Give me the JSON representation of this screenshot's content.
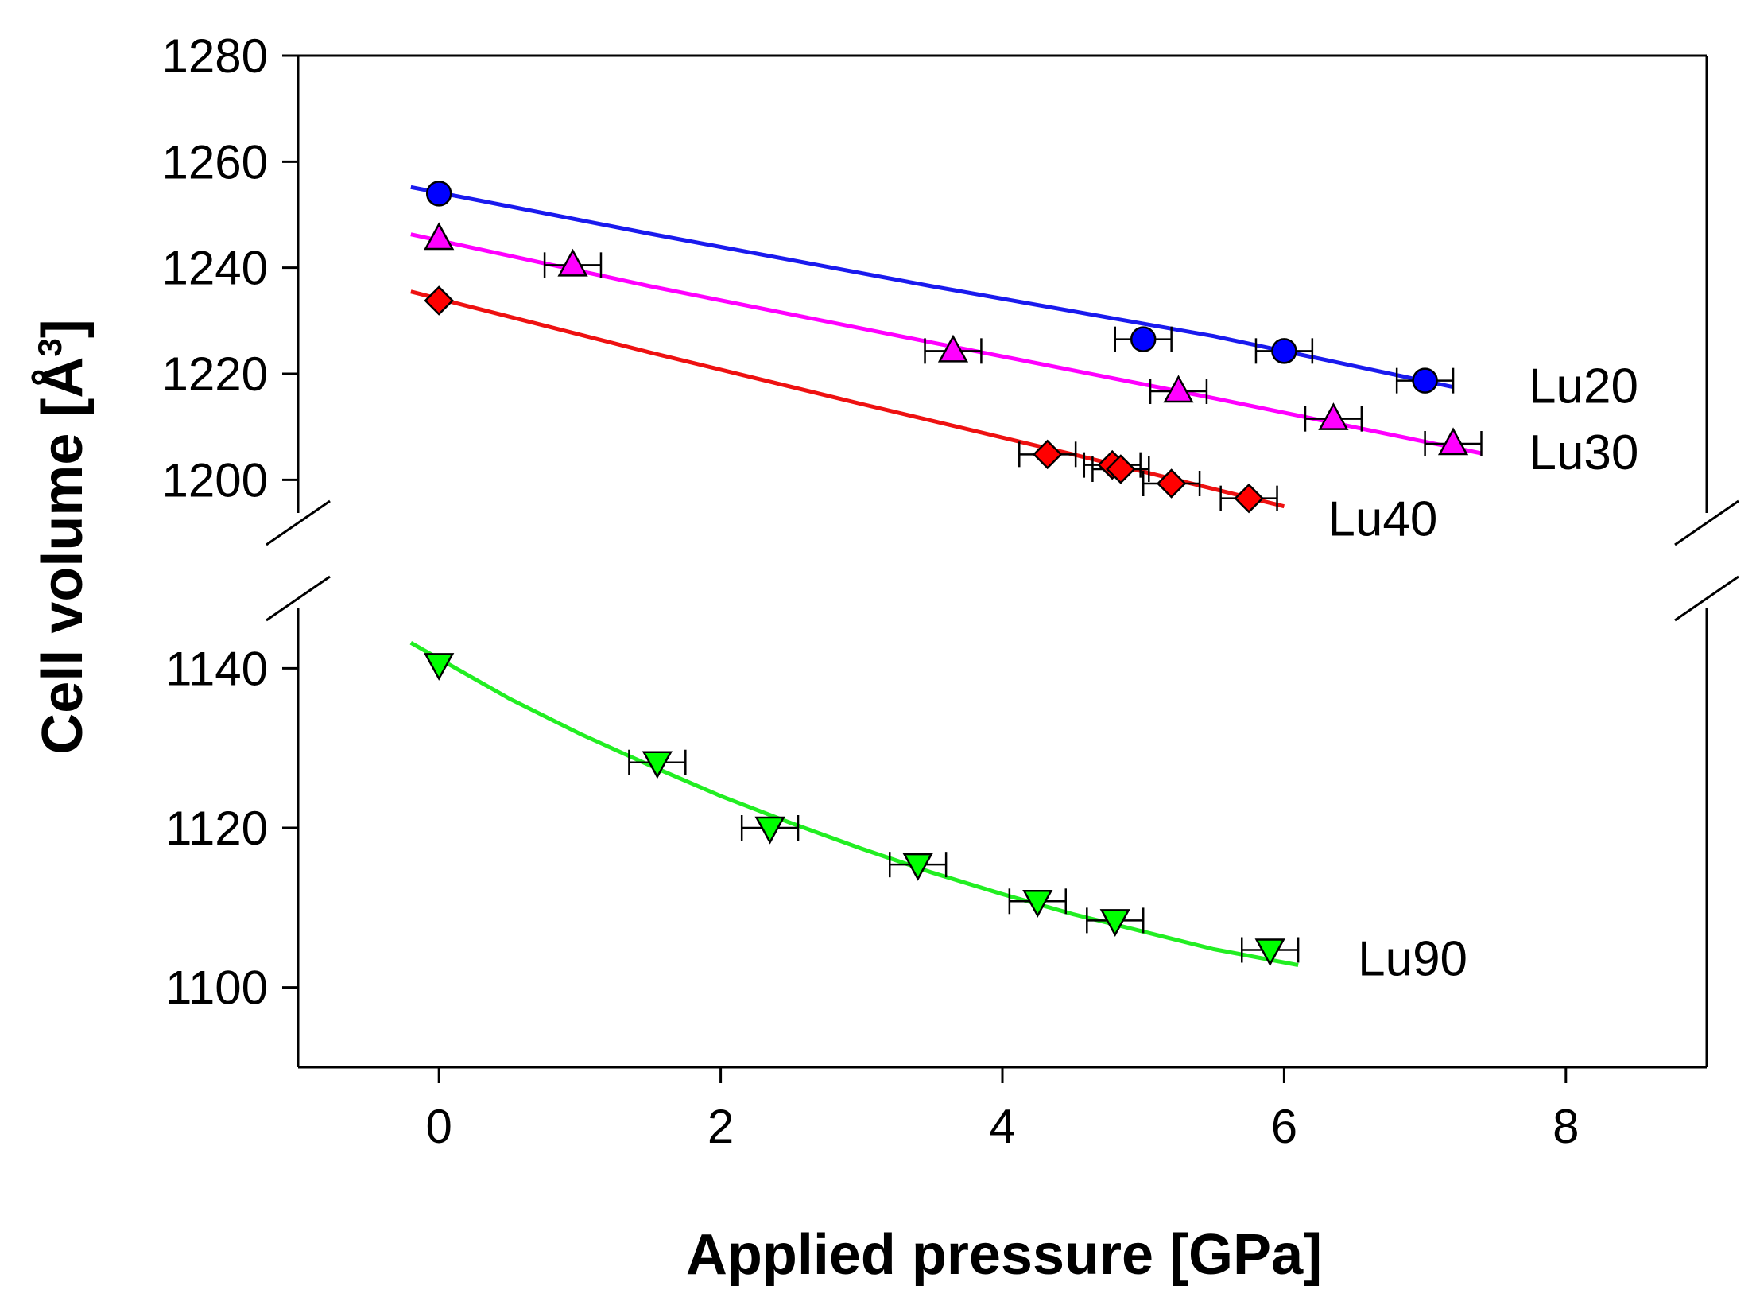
{
  "chart_data": {
    "type": "scatter",
    "xlabel": "Applied pressure [GPa]",
    "ylabel": {
      "main": "Cell volume [Å",
      "superscript": "3",
      "close": "]"
    },
    "xlim": [
      -1,
      9
    ],
    "ylim_upper": [
      1190,
      1280
    ],
    "ylim_lower": [
      1090,
      1150
    ],
    "broken_y_axis": true,
    "x_ticks": [
      "0",
      "2",
      "4",
      "6",
      "8"
    ],
    "x_tick_values": [
      0,
      2,
      4,
      6,
      8
    ],
    "y_ticks_upper": [
      "1200",
      "1220",
      "1240",
      "1260",
      "1280"
    ],
    "y_tick_values_upper": [
      1200,
      1220,
      1240,
      1260,
      1280
    ],
    "y_ticks_lower": [
      "1100",
      "1120",
      "1140"
    ],
    "y_tick_values_lower": [
      1100,
      1120,
      1140
    ],
    "grid": false,
    "series": [
      {
        "name": "Lu20",
        "segment": "upper",
        "color": "#0000ff",
        "line_color": "#1a1aee",
        "marker": "circle",
        "points": [
          {
            "x": 0,
            "y": 1254,
            "xerr": 0
          },
          {
            "x": 5.0,
            "y": 1226.5,
            "xerr": 0.2
          },
          {
            "x": 6.0,
            "y": 1224.3,
            "xerr": 0.2
          },
          {
            "x": 7.0,
            "y": 1218.7,
            "xerr": 0.2
          }
        ],
        "fit": [
          [
            -0.2,
            1255.2
          ],
          [
            1.5,
            1246.4
          ],
          [
            3.5,
            1236.5
          ],
          [
            5.5,
            1227.1
          ],
          [
            7.2,
            1217.5
          ]
        ]
      },
      {
        "name": "Lu30",
        "segment": "upper",
        "color": "#ff00ff",
        "line_color": "#ff00ff",
        "marker": "triangle-up",
        "points": [
          {
            "x": 0,
            "y": 1245.5,
            "xerr": 0
          },
          {
            "x": 0.95,
            "y": 1240.5,
            "xerr": 0.2
          },
          {
            "x": 3.65,
            "y": 1224.3,
            "xerr": 0.2
          },
          {
            "x": 5.25,
            "y": 1216.7,
            "xerr": 0.2
          },
          {
            "x": 6.35,
            "y": 1211.5,
            "xerr": 0.2
          },
          {
            "x": 7.2,
            "y": 1206.8,
            "xerr": 0.2
          }
        ],
        "fit": [
          [
            -0.2,
            1246.3
          ],
          [
            1.5,
            1236.5
          ],
          [
            3.5,
            1225.9
          ],
          [
            5.5,
            1215.4
          ],
          [
            7.4,
            1205.0
          ]
        ]
      },
      {
        "name": "Lu40",
        "segment": "upper",
        "color": "#ff0000",
        "line_color": "#ee1111",
        "marker": "diamond",
        "points": [
          {
            "x": 0,
            "y": 1233.8,
            "xerr": 0
          },
          {
            "x": 4.32,
            "y": 1204.8,
            "xerr": 0.2
          },
          {
            "x": 4.78,
            "y": 1202.8,
            "xerr": 0.2
          },
          {
            "x": 4.84,
            "y": 1202.0,
            "xerr": 0.2
          },
          {
            "x": 5.2,
            "y": 1199.3,
            "xerr": 0.2
          },
          {
            "x": 5.75,
            "y": 1196.5,
            "xerr": 0.2
          }
        ],
        "fit": [
          [
            -0.2,
            1235.5
          ],
          [
            1.5,
            1224.0
          ],
          [
            3.0,
            1214.3
          ],
          [
            4.5,
            1204.8
          ],
          [
            6.0,
            1195.0
          ]
        ]
      },
      {
        "name": "Lu90",
        "segment": "lower",
        "color": "#00ff00",
        "line_color": "#22ee22",
        "marker": "triangle-down",
        "points": [
          {
            "x": 0,
            "y": 1140.5,
            "xerr": 0
          },
          {
            "x": 1.55,
            "y": 1128.2,
            "xerr": 0.2
          },
          {
            "x": 2.35,
            "y": 1120.0,
            "xerr": 0.2
          },
          {
            "x": 3.4,
            "y": 1115.4,
            "xerr": 0.2
          },
          {
            "x": 4.25,
            "y": 1110.8,
            "xerr": 0.2
          },
          {
            "x": 4.8,
            "y": 1108.4,
            "xerr": 0.2
          },
          {
            "x": 5.9,
            "y": 1104.7,
            "xerr": 0.2
          }
        ],
        "fit": [
          [
            -0.2,
            1143.2
          ],
          [
            0.5,
            1136.2
          ],
          [
            1.0,
            1131.8
          ],
          [
            1.5,
            1127.8
          ],
          [
            2.0,
            1124.0
          ],
          [
            2.5,
            1120.6
          ],
          [
            3.0,
            1117.4
          ],
          [
            3.5,
            1114.4
          ],
          [
            4.0,
            1111.7
          ],
          [
            4.5,
            1109.2
          ],
          [
            5.0,
            1107.0
          ],
          [
            5.5,
            1104.8
          ],
          [
            6.1,
            1102.8
          ]
        ]
      }
    ]
  }
}
